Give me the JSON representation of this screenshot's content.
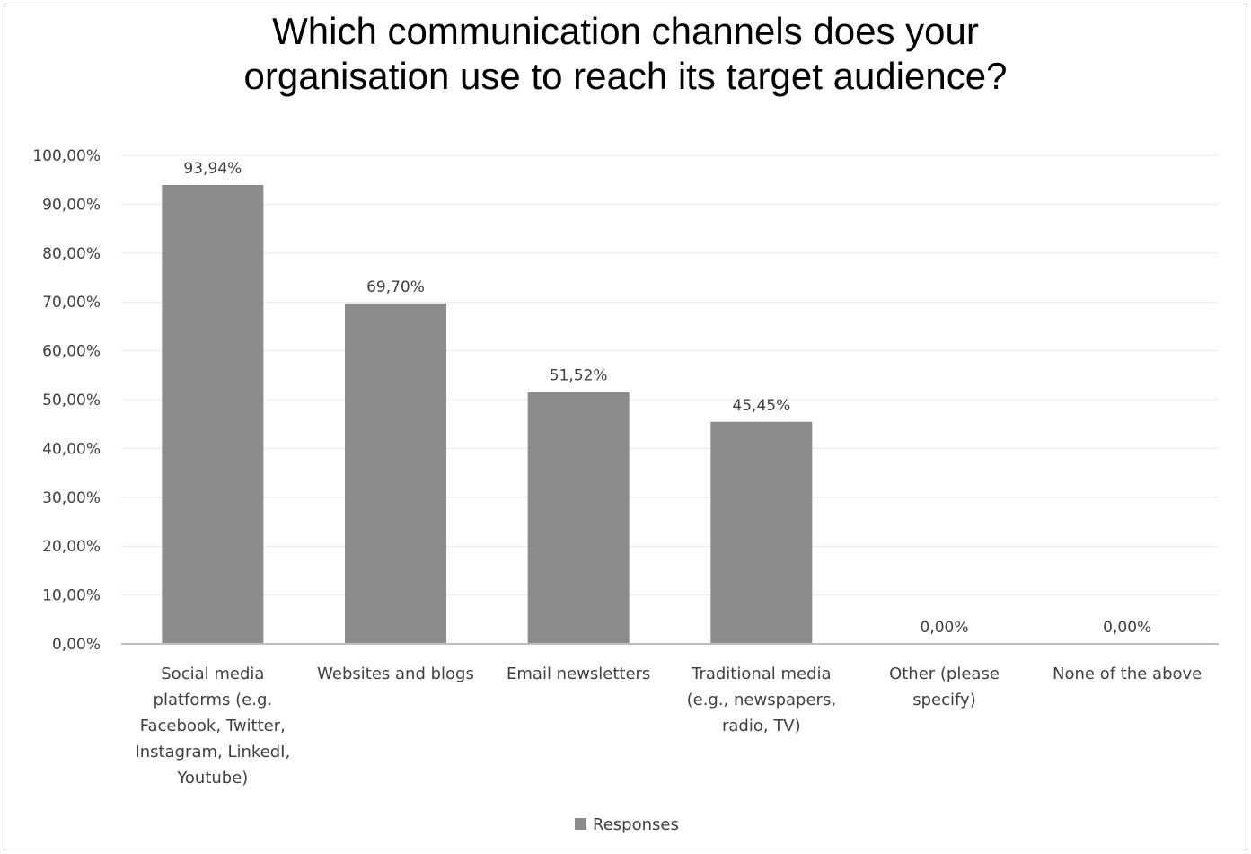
{
  "chart_data": {
    "type": "bar",
    "title_lines": [
      "Which communication channels does your",
      "organisation use to reach its target audience?"
    ],
    "categories": [
      [
        "Social media",
        "platforms (e.g.",
        "Facebook, Twitter,",
        "Instagram, LinkedI,",
        "Youtube)"
      ],
      [
        "Websites and blogs"
      ],
      [
        "Email newsletters"
      ],
      [
        "Traditional media",
        "(e.g., newspapers,",
        "radio, TV)"
      ],
      [
        "Other (please",
        "specify)"
      ],
      [
        "None of the above"
      ]
    ],
    "series": [
      {
        "name": "Responses",
        "values": [
          93.94,
          69.7,
          51.52,
          45.45,
          0.0,
          0.0
        ],
        "labels": [
          "93,94%",
          "69,70%",
          "51,52%",
          "45,45%",
          "0,00%",
          "0,00%"
        ],
        "color": "#8c8c8c"
      }
    ],
    "ylim": [
      0,
      100
    ],
    "yticks": [
      "0,00%",
      "10,00%",
      "20,00%",
      "30,00%",
      "40,00%",
      "50,00%",
      "60,00%",
      "70,00%",
      "80,00%",
      "90,00%",
      "100,00%"
    ],
    "grid": true,
    "legend_position": "bottom",
    "gridline_color": "#e8e8e8",
    "axis_color": "#bfbfbf"
  }
}
